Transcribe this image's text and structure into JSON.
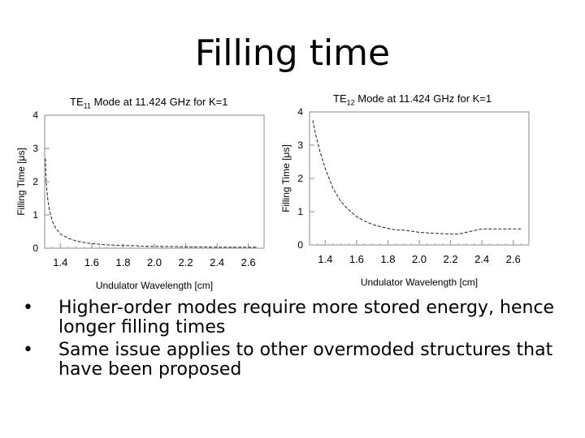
{
  "slide": {
    "title": "Filling time"
  },
  "chart_data": [
    {
      "type": "line",
      "title_prefix": "TE",
      "title_sub": "11",
      "title_suffix": " Mode at 11.424 GHz for K=1",
      "xlabel": "Undulator Wavelength [cm]",
      "ylabel": "Filling Time [μs]",
      "xlim": [
        1.3,
        2.7
      ],
      "ylim": [
        0,
        4
      ],
      "xticks": [
        "1.4",
        "1.6",
        "1.8",
        "2.0",
        "2.2",
        "2.4",
        "2.6"
      ],
      "yticks": [
        "0",
        "1",
        "2",
        "3",
        "4"
      ],
      "grid": false,
      "x": [
        1.304,
        1.31,
        1.32,
        1.33,
        1.35,
        1.37,
        1.4,
        1.45,
        1.5,
        1.55,
        1.6,
        1.65,
        1.7,
        1.8,
        1.85,
        1.92,
        2.0,
        2.1,
        2.2,
        2.3,
        2.4,
        2.5,
        2.6,
        2.65
      ],
      "y": [
        2.7,
        1.95,
        1.45,
        1.15,
        0.8,
        0.6,
        0.43,
        0.3,
        0.22,
        0.17,
        0.14,
        0.12,
        0.1,
        0.08,
        0.08,
        0.06,
        0.05,
        0.05,
        0.04,
        0.04,
        0.03,
        0.03,
        0.03,
        0.03
      ]
    },
    {
      "type": "line",
      "title_prefix": "TE",
      "title_sub": "12",
      "title_suffix": " Mode at 11.424 GHz for K=1",
      "xlabel": "Undulator Wavelength [cm]",
      "ylabel": "Filling Time [μs]",
      "xlim": [
        1.3,
        2.7
      ],
      "ylim": [
        0,
        4
      ],
      "xticks": [
        "1.4",
        "1.6",
        "1.8",
        "2.0",
        "2.2",
        "2.4",
        "2.6"
      ],
      "yticks": [
        "0",
        "1",
        "2",
        "3",
        "4"
      ],
      "grid": false,
      "x": [
        1.32,
        1.34,
        1.37,
        1.4,
        1.45,
        1.5,
        1.55,
        1.6,
        1.65,
        1.7,
        1.75,
        1.8,
        1.85,
        1.9,
        2.0,
        2.1,
        2.2,
        2.25,
        2.4,
        2.5,
        2.6,
        2.65
      ],
      "y": [
        3.75,
        3.3,
        2.75,
        2.3,
        1.7,
        1.3,
        1.05,
        0.85,
        0.72,
        0.62,
        0.55,
        0.5,
        0.45,
        0.45,
        0.38,
        0.35,
        0.33,
        0.33,
        0.48,
        0.48,
        0.48,
        0.48
      ]
    }
  ],
  "bullets": [
    "Higher-order modes require more stored energy, hence longer filling times",
    "Same issue applies to other overmoded structures that have been proposed"
  ],
  "bullet_glyph": "•"
}
